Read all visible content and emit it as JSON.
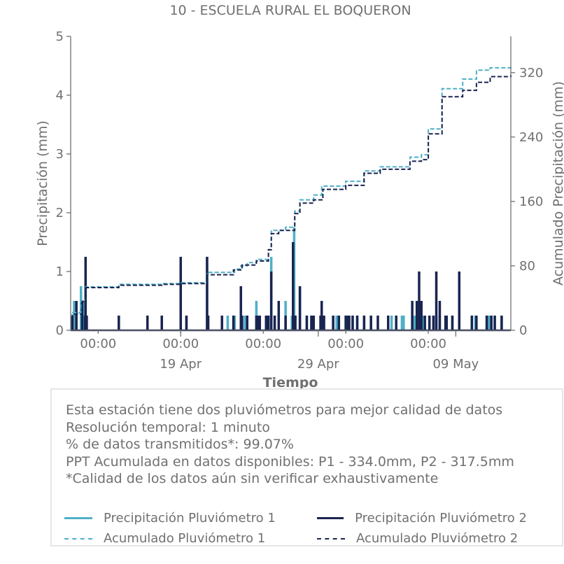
{
  "chart_data": {
    "type": "line",
    "title": "10 - ESCUELA RURAL EL BOQUERON",
    "xlabel": "Tiempo",
    "ylabel": "Precipitación (mm)",
    "y2label": "Acumulado Precipitación (mm)",
    "ylim": [
      0,
      5
    ],
    "y2lim": [
      0,
      365
    ],
    "yticks": [
      "0",
      "1",
      "2",
      "3",
      "4",
      "5"
    ],
    "y2ticks": [
      "0",
      "80",
      "160",
      "240",
      "320"
    ],
    "x_minor_ticks": [
      "00:00",
      "00:00",
      "00:00",
      "00:00",
      "00:00"
    ],
    "x_major_ticks": [
      "19 Apr",
      "29 Apr",
      "09 May"
    ],
    "xlim": [
      "2024-04-11",
      "2024-05-13"
    ],
    "x_minor_dates": [
      "2024-04-13",
      "2024-04-19",
      "2024-04-25",
      "2024-05-01",
      "2024-05-07"
    ],
    "x_major_dates": [
      "2024-04-19",
      "2024-04-29",
      "2024-05-09"
    ],
    "colors": {
      "p1": "#4fb0c6",
      "p2": "#1a2450",
      "axis": "#707070"
    },
    "series": [
      {
        "name": "Precipitación Pluviómetro 1",
        "kind": "bar",
        "x": [
          "2024-04-11T02",
          "2024-04-11T06",
          "2024-04-11T18",
          "2024-04-12T00",
          "2024-04-12T02",
          "2024-04-12T03",
          "2024-04-14T12",
          "2024-04-16T14",
          "2024-04-17T15",
          "2024-04-19T00",
          "2024-04-19T10",
          "2024-04-20T22",
          "2024-04-22T00",
          "2024-04-22T10",
          "2024-04-22T22",
          "2024-04-23T09",
          "2024-04-23T11",
          "2024-04-23T16",
          "2024-04-23T20",
          "2024-04-24T12",
          "2024-04-25T05",
          "2024-04-25T09",
          "2024-04-25T14",
          "2024-04-25T20",
          "2024-04-26T15",
          "2024-04-27T02",
          "2024-04-27T06",
          "2024-04-27T07",
          "2024-04-27T08",
          "2024-04-27T16",
          "2024-04-28T04",
          "2024-04-28T12",
          "2024-04-28T16",
          "2024-04-29T04",
          "2024-04-29T06",
          "2024-04-29T10",
          "2024-04-30T02",
          "2024-04-30T08",
          "2024-05-01T00",
          "2024-05-01T04",
          "2024-05-01T12",
          "2024-05-01T20",
          "2024-05-02T08",
          "2024-05-02T20",
          "2024-05-04T08",
          "2024-05-04T16",
          "2024-05-05T02",
          "2024-05-05T05",
          "2024-05-05T20",
          "2024-05-06T00",
          "2024-05-06T08",
          "2024-05-06T10",
          "2024-05-06T14",
          "2024-05-06T18",
          "2024-05-07T09",
          "2024-05-07T14",
          "2024-05-07T20",
          "2024-05-08T08",
          "2024-05-08T18",
          "2024-05-09T06",
          "2024-05-10T04",
          "2024-05-10T10",
          "2024-05-11T06",
          "2024-05-11T10",
          "2024-05-11T14",
          "2024-05-11T20",
          "2024-05-12T08"
        ],
        "values": [
          0.25,
          0.5,
          0.75,
          0.5,
          1.25,
          0.25,
          0.25,
          0.25,
          0.25,
          1.25,
          0.25,
          1.25,
          0.25,
          0.25,
          0.25,
          0.75,
          0.25,
          0.25,
          0.25,
          0.5,
          0.25,
          0.25,
          1.25,
          0.25,
          0.5,
          0.25,
          1.75,
          0.25,
          0.25,
          0.75,
          0.25,
          0.25,
          0.25,
          0.25,
          0.5,
          0.25,
          0.25,
          0.25,
          0.25,
          0.25,
          0.25,
          0.25,
          0.25,
          0.25,
          0.25,
          0.25,
          0.25,
          0.25,
          0.25,
          0.25,
          0.25,
          0.25,
          0.25,
          0.25,
          0.25,
          0.25,
          0.25,
          0.25,
          0.25,
          0.25,
          0.25,
          0.25,
          0.25,
          0.25,
          0.25,
          0.25,
          0.25
        ]
      },
      {
        "name": "Precipitación Pluviómetro 2",
        "kind": "bar",
        "x": [
          "2024-04-11T03",
          "2024-04-11T10",
          "2024-04-11T20",
          "2024-04-12T01",
          "2024-04-12T02",
          "2024-04-12T04",
          "2024-04-14T12",
          "2024-04-16T14",
          "2024-04-17T15",
          "2024-04-19T00",
          "2024-04-19T10",
          "2024-04-20T22",
          "2024-04-21T00",
          "2024-04-22T00",
          "2024-04-22T20",
          "2024-04-23T09",
          "2024-04-23T11",
          "2024-04-23T20",
          "2024-04-24T12",
          "2024-04-24T16",
          "2024-04-24T18",
          "2024-04-25T05",
          "2024-04-25T09",
          "2024-04-25T14",
          "2024-04-25T20",
          "2024-04-26T03",
          "2024-04-26T15",
          "2024-04-27T04",
          "2024-04-27T07",
          "2024-04-27T08",
          "2024-04-27T16",
          "2024-04-28T04",
          "2024-04-28T12",
          "2024-04-28T16",
          "2024-04-29T04",
          "2024-04-29T06",
          "2024-04-29T08",
          "2024-04-29T10",
          "2024-04-30T02",
          "2024-04-30T12",
          "2024-05-01T00",
          "2024-05-01T04",
          "2024-05-01T06",
          "2024-05-01T12",
          "2024-05-01T20",
          "2024-05-02T08",
          "2024-05-02T20",
          "2024-05-03T08",
          "2024-05-04T02",
          "2024-05-04T16",
          "2024-05-05T20",
          "2024-05-06T04",
          "2024-05-06T08",
          "2024-05-06T12",
          "2024-05-06T18",
          "2024-05-07T02",
          "2024-05-07T09",
          "2024-05-07T14",
          "2024-05-07T20",
          "2024-05-08T06",
          "2024-05-08T08",
          "2024-05-08T18",
          "2024-05-09T06",
          "2024-05-10T04",
          "2024-05-10T12",
          "2024-05-11T06",
          "2024-05-11T14",
          "2024-05-11T20",
          "2024-05-12T08"
        ],
        "values": [
          0.25,
          0.5,
          0.5,
          0.25,
          1.25,
          0.25,
          0.25,
          0.25,
          0.25,
          1.25,
          0.25,
          1.25,
          0.25,
          0.25,
          0.25,
          0.75,
          0.25,
          0.25,
          0.25,
          0.25,
          0.25,
          0.25,
          0.25,
          1.0,
          0.25,
          0.5,
          0.25,
          1.5,
          0.25,
          0.25,
          0.75,
          0.25,
          0.25,
          0.25,
          0.25,
          0.5,
          0.25,
          0.25,
          0.25,
          0.25,
          0.25,
          0.25,
          0.25,
          0.25,
          0.25,
          0.25,
          0.25,
          0.25,
          0.25,
          0.25,
          0.5,
          0.5,
          1.0,
          0.5,
          0.25,
          0.25,
          0.25,
          1.0,
          0.5,
          0.25,
          0.25,
          0.25,
          1.0,
          0.25,
          0.25,
          0.25,
          0.25,
          0.25,
          0.25
        ]
      },
      {
        "name": "Acumulado Pluviómetro 1",
        "kind": "step",
        "x": [
          "2024-04-11T00",
          "2024-04-11T02",
          "2024-04-11T18",
          "2024-04-12T02",
          "2024-04-14T12",
          "2024-04-17T15",
          "2024-04-19T00",
          "2024-04-20T22",
          "2024-04-22T22",
          "2024-04-23T09",
          "2024-04-23T20",
          "2024-04-24T12",
          "2024-04-25T09",
          "2024-04-25T14",
          "2024-04-26T15",
          "2024-04-27T07",
          "2024-04-27T16",
          "2024-04-28T16",
          "2024-04-29T06",
          "2024-05-01T00",
          "2024-05-02T08",
          "2024-05-03T12",
          "2024-05-05T16",
          "2024-05-06T12",
          "2024-05-07T00",
          "2024-05-08T00",
          "2024-05-09T12",
          "2024-05-10T12",
          "2024-05-11T12",
          "2024-05-13T00"
        ],
        "values": [
          16,
          22,
          38,
          54,
          57,
          58,
          59,
          72,
          76,
          80,
          84,
          88,
          100,
          124,
          128,
          148,
          162,
          168,
          179,
          185,
          198,
          203,
          215,
          218,
          250,
          300,
          312,
          323,
          326,
          327
        ]
      },
      {
        "name": "Acumulado Pluviómetro 2",
        "kind": "step",
        "x": [
          "2024-04-11T00",
          "2024-04-11T03",
          "2024-04-11T20",
          "2024-04-12T02",
          "2024-04-14T12",
          "2024-04-17T15",
          "2024-04-19T00",
          "2024-04-20T22",
          "2024-04-22T20",
          "2024-04-23T11",
          "2024-04-24T12",
          "2024-04-25T09",
          "2024-04-25T14",
          "2024-04-26T03",
          "2024-04-27T07",
          "2024-04-27T16",
          "2024-04-28T16",
          "2024-04-29T08",
          "2024-05-01T00",
          "2024-05-02T08",
          "2024-05-03T12",
          "2024-05-05T16",
          "2024-05-06T12",
          "2024-05-07T00",
          "2024-05-08T00",
          "2024-05-09T12",
          "2024-05-10T12",
          "2024-05-11T12",
          "2024-05-13T00"
        ],
        "values": [
          16,
          20,
          36,
          53,
          56,
          57,
          58,
          69,
          75,
          81,
          86,
          100,
          120,
          124,
          145,
          158,
          162,
          175,
          180,
          195,
          200,
          210,
          212,
          244,
          290,
          298,
          308,
          315,
          317
        ]
      }
    ]
  },
  "info_box": {
    "lines": [
      "Esta estación tiene dos pluviómetros para mejor calidad de datos",
      "Resolución temporal: 1 minuto",
      "% de datos transmitidos*: 99.07%",
      "PPT Acumulada en datos disponibles: P1 - 334.0mm, P2 - 317.5mm",
      "*Calidad de los datos aún sin verificar exhaustivamente"
    ],
    "legend": [
      {
        "label": "Precipitación Pluviómetro 1",
        "color": "#4fb0c6",
        "style": "solid"
      },
      {
        "label": "Precipitación Pluviómetro 2",
        "color": "#1a2450",
        "style": "solid"
      },
      {
        "label": "Acumulado Pluviómetro 1",
        "color": "#4fb0c6",
        "style": "dashed"
      },
      {
        "label": "Acumulado Pluviómetro 2",
        "color": "#1a2450",
        "style": "dashed"
      }
    ]
  }
}
